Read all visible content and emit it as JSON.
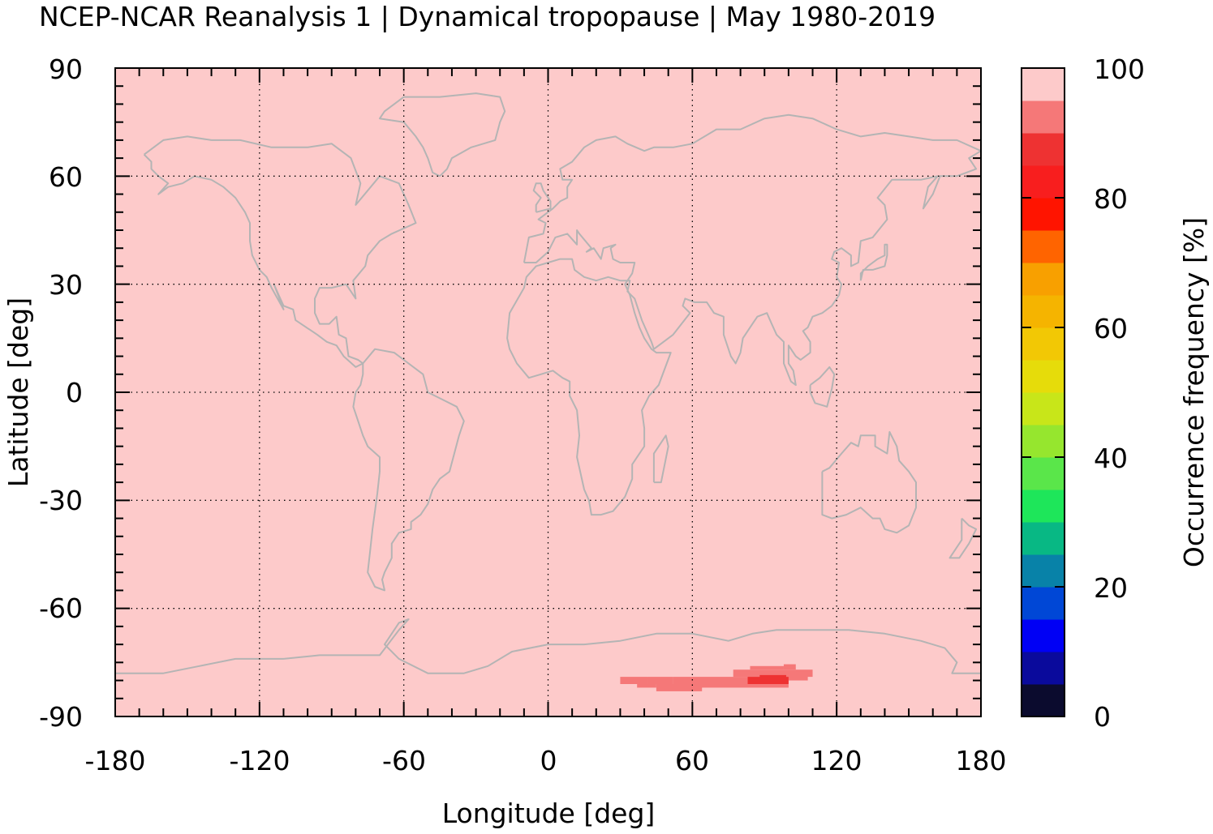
{
  "chart_data": {
    "type": "heatmap",
    "title": "NCEP-NCAR Reanalysis 1 | Dynamical tropopause | May 1980-2019",
    "xlabel": "Longitude [deg]",
    "ylabel": "Latitude [deg]",
    "colorbar_label": "Occurrence frequency [%]",
    "xlim": [
      -180,
      180
    ],
    "ylim": [
      -90,
      90
    ],
    "x_ticks": [
      "-180",
      "-120",
      "-60",
      "0",
      "60",
      "120",
      "180"
    ],
    "y_ticks": [
      "-90",
      "-60",
      "-30",
      "0",
      "30",
      "60",
      "90"
    ],
    "colorbar_ticks": [
      "0",
      "20",
      "40",
      "60",
      "80",
      "100"
    ],
    "colorbar_range": [
      0,
      100
    ],
    "grid": true,
    "background_value": 100,
    "colormap": [
      {
        "from": 0,
        "to": 5,
        "color": "#0b0b2e"
      },
      {
        "from": 5,
        "to": 10,
        "color": "#0a0a9c"
      },
      {
        "from": 10,
        "to": 15,
        "color": "#0000f5"
      },
      {
        "from": 15,
        "to": 20,
        "color": "#0047d6"
      },
      {
        "from": 20,
        "to": 25,
        "color": "#0882a8"
      },
      {
        "from": 25,
        "to": 30,
        "color": "#08b884"
      },
      {
        "from": 30,
        "to": 35,
        "color": "#1ee65a"
      },
      {
        "from": 35,
        "to": 40,
        "color": "#5ae64a"
      },
      {
        "from": 40,
        "to": 45,
        "color": "#96e62e"
      },
      {
        "from": 45,
        "to": 50,
        "color": "#c8e619"
      },
      {
        "from": 50,
        "to": 55,
        "color": "#e6dc0a"
      },
      {
        "from": 55,
        "to": 60,
        "color": "#f2c805"
      },
      {
        "from": 60,
        "to": 65,
        "color": "#f5b400"
      },
      {
        "from": 65,
        "to": 70,
        "color": "#f8a000"
      },
      {
        "from": 70,
        "to": 75,
        "color": "#ff6400"
      },
      {
        "from": 75,
        "to": 80,
        "color": "#ff1400"
      },
      {
        "from": 80,
        "to": 85,
        "color": "#f81e1e"
      },
      {
        "from": 85,
        "to": 90,
        "color": "#ee3232"
      },
      {
        "from": 90,
        "to": 95,
        "color": "#f57878"
      },
      {
        "from": 95,
        "to": 100,
        "color": "#fdcaca"
      }
    ],
    "anomalies": [
      {
        "lon": [
          30,
          41
        ],
        "lat": [
          -81,
          -79
        ],
        "value": 92
      },
      {
        "lon": [
          37,
          45
        ],
        "lat": [
          -82,
          -81
        ],
        "value": 92
      },
      {
        "lon": [
          41,
          52
        ],
        "lat": [
          -81,
          -79
        ],
        "value": 92
      },
      {
        "lon": [
          45,
          64
        ],
        "lat": [
          -83,
          -81
        ],
        "value": 92
      },
      {
        "lon": [
          52,
          100
        ],
        "lat": [
          -82,
          -79
        ],
        "value": 92
      },
      {
        "lon": [
          77,
          110
        ],
        "lat": [
          -79,
          -77
        ],
        "value": 92
      },
      {
        "lon": [
          84,
          98
        ],
        "lat": [
          -77,
          -76
        ],
        "value": 92
      },
      {
        "lon": [
          98,
          103
        ],
        "lat": [
          -77,
          -75.5
        ],
        "value": 92
      },
      {
        "lon": [
          100,
          108
        ],
        "lat": [
          -80,
          -78
        ],
        "value": 92
      },
      {
        "lon": [
          83,
          100
        ],
        "lat": [
          -81,
          -79
        ],
        "value": 86
      },
      {
        "lon": [
          88,
          99
        ],
        "lat": [
          -79.5,
          -78.5
        ],
        "value": 86
      }
    ]
  }
}
